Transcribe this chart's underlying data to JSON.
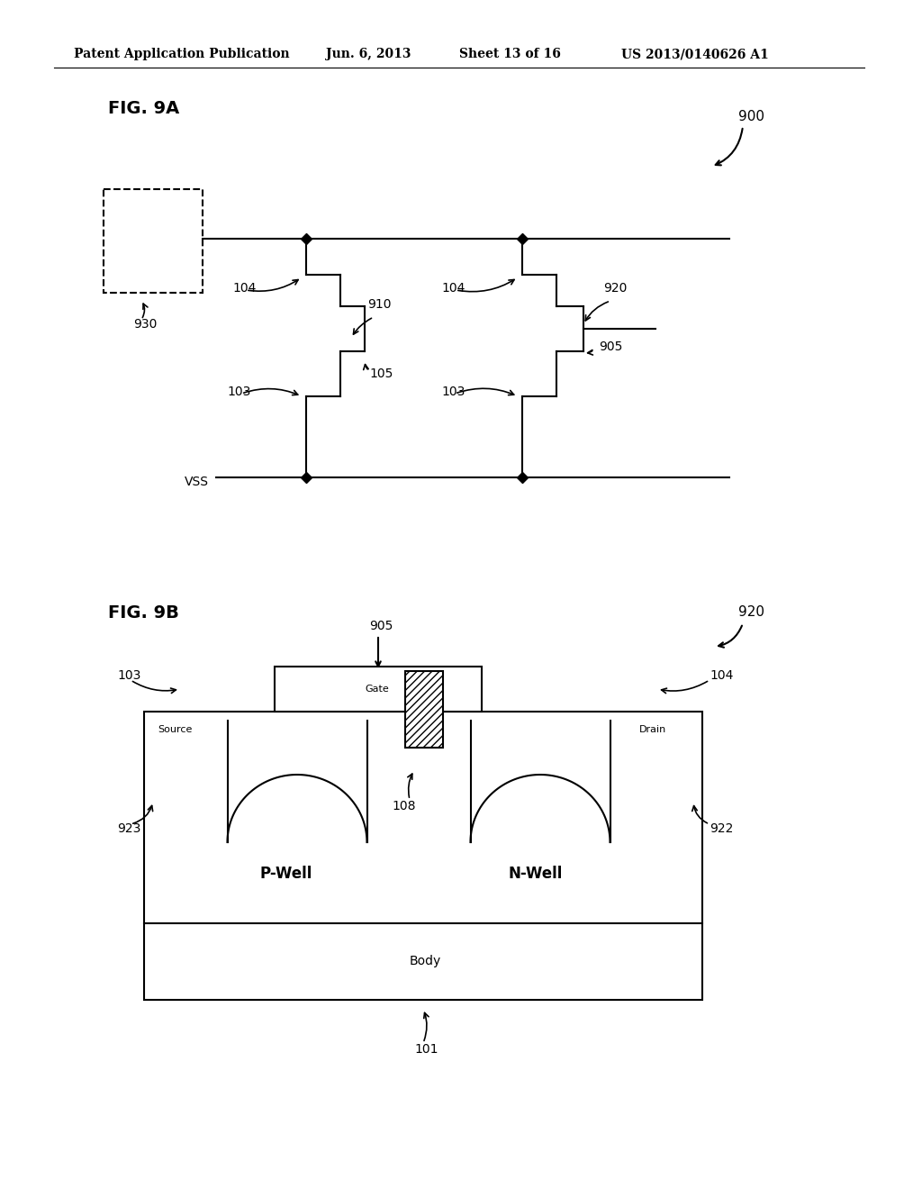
{
  "bg_color": "#ffffff",
  "header_text": "Patent Application Publication",
  "header_date": "Jun. 6, 2013",
  "header_sheet": "Sheet 13 of 16",
  "header_patent": "US 2013/0140626 A1",
  "fig9a_label": "FIG. 9A",
  "fig9b_label": "FIG. 9B",
  "label_900": "900",
  "label_930": "930",
  "label_910": "910",
  "label_920a": "920",
  "label_920b": "920",
  "label_104a": "104",
  "label_104b": "104",
  "label_103a": "103",
  "label_103b": "103",
  "label_105": "105",
  "label_905a": "905",
  "label_905b": "905",
  "label_vss": "VSS",
  "label_101": "101",
  "label_108": "108",
  "label_922": "922",
  "label_923": "923",
  "label_source": "Source",
  "label_gate": "Gate",
  "label_drain": "Drain",
  "label_pwell": "P-Well",
  "label_nwell": "N-Well",
  "label_body": "Body"
}
